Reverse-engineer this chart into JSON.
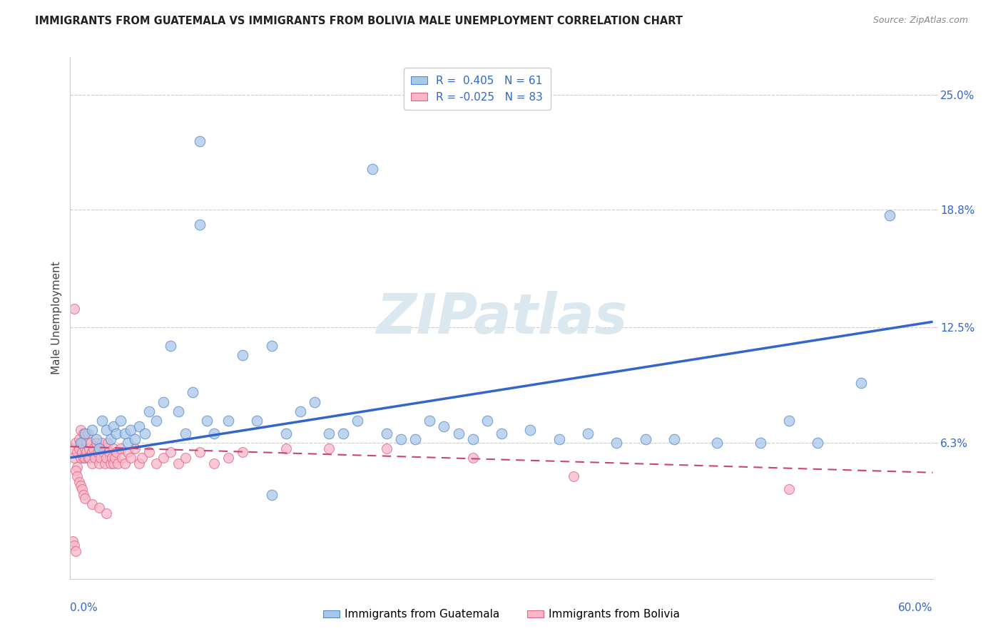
{
  "title": "IMMIGRANTS FROM GUATEMALA VS IMMIGRANTS FROM BOLIVIA MALE UNEMPLOYMENT CORRELATION CHART",
  "source": "Source: ZipAtlas.com",
  "ylabel": "Male Unemployment",
  "ytick_labels": [
    "25.0%",
    "18.8%",
    "12.5%",
    "6.3%"
  ],
  "ytick_values": [
    0.25,
    0.188,
    0.125,
    0.063
  ],
  "xlim": [
    0.0,
    0.6
  ],
  "ylim": [
    -0.01,
    0.27
  ],
  "legend_r_blue": "R =  0.405",
  "legend_n_blue": "N = 61",
  "legend_r_pink": "R = -0.025",
  "legend_n_pink": "N = 83",
  "blue_color": "#a8c8e8",
  "blue_edge_color": "#5588cc",
  "blue_line_color": "#3366cc",
  "pink_color": "#f8b8c8",
  "pink_edge_color": "#dd6688",
  "pink_line_color": "#cc4477",
  "watermark_text": "ZIPatlas",
  "watermark_color": "#dce8f0",
  "background_color": "#ffffff",
  "grid_color": "#cccccc",
  "title_color": "#222222",
  "axis_label_color": "#444444",
  "tick_label_color": "#3366cc",
  "blue_line_x": [
    0.0,
    0.6
  ],
  "blue_line_y": [
    0.055,
    0.128
  ],
  "pink_line_x": [
    0.0,
    0.6
  ],
  "pink_line_y": [
    0.061,
    0.047
  ],
  "blue_scatter_x": [
    0.007,
    0.01,
    0.015,
    0.018,
    0.02,
    0.022,
    0.025,
    0.028,
    0.03,
    0.032,
    0.035,
    0.038,
    0.04,
    0.042,
    0.045,
    0.048,
    0.052,
    0.055,
    0.06,
    0.065,
    0.07,
    0.075,
    0.08,
    0.085,
    0.09,
    0.095,
    0.1,
    0.11,
    0.12,
    0.13,
    0.14,
    0.15,
    0.16,
    0.17,
    0.18,
    0.19,
    0.2,
    0.21,
    0.22,
    0.23,
    0.24,
    0.25,
    0.26,
    0.27,
    0.28,
    0.29,
    0.3,
    0.32,
    0.34,
    0.36,
    0.38,
    0.4,
    0.42,
    0.45,
    0.48,
    0.5,
    0.52,
    0.55,
    0.09,
    0.57,
    0.14
  ],
  "blue_scatter_y": [
    0.063,
    0.068,
    0.07,
    0.065,
    0.06,
    0.075,
    0.07,
    0.065,
    0.072,
    0.068,
    0.075,
    0.068,
    0.063,
    0.07,
    0.065,
    0.072,
    0.068,
    0.08,
    0.075,
    0.085,
    0.115,
    0.08,
    0.068,
    0.09,
    0.18,
    0.075,
    0.068,
    0.075,
    0.11,
    0.075,
    0.115,
    0.068,
    0.08,
    0.085,
    0.068,
    0.068,
    0.075,
    0.21,
    0.068,
    0.065,
    0.065,
    0.075,
    0.072,
    0.068,
    0.065,
    0.075,
    0.068,
    0.07,
    0.065,
    0.068,
    0.063,
    0.065,
    0.065,
    0.063,
    0.063,
    0.075,
    0.063,
    0.095,
    0.225,
    0.185,
    0.035
  ],
  "pink_scatter_x": [
    0.002,
    0.003,
    0.004,
    0.005,
    0.005,
    0.006,
    0.006,
    0.007,
    0.007,
    0.008,
    0.008,
    0.009,
    0.009,
    0.01,
    0.01,
    0.011,
    0.011,
    0.012,
    0.012,
    0.013,
    0.013,
    0.014,
    0.015,
    0.015,
    0.016,
    0.017,
    0.018,
    0.019,
    0.02,
    0.02,
    0.021,
    0.022,
    0.023,
    0.024,
    0.025,
    0.025,
    0.026,
    0.027,
    0.028,
    0.029,
    0.03,
    0.03,
    0.031,
    0.032,
    0.033,
    0.035,
    0.036,
    0.038,
    0.04,
    0.042,
    0.045,
    0.048,
    0.05,
    0.055,
    0.06,
    0.065,
    0.07,
    0.075,
    0.08,
    0.09,
    0.1,
    0.11,
    0.12,
    0.15,
    0.18,
    0.22,
    0.28,
    0.35,
    0.5,
    0.003,
    0.004,
    0.005,
    0.006,
    0.007,
    0.008,
    0.009,
    0.01,
    0.015,
    0.02,
    0.025,
    0.002,
    0.003,
    0.004
  ],
  "pink_scatter_y": [
    0.06,
    0.055,
    0.063,
    0.058,
    0.05,
    0.065,
    0.06,
    0.055,
    0.07,
    0.063,
    0.058,
    0.055,
    0.068,
    0.06,
    0.055,
    0.063,
    0.058,
    0.055,
    0.068,
    0.06,
    0.055,
    0.063,
    0.058,
    0.052,
    0.06,
    0.055,
    0.063,
    0.058,
    0.06,
    0.052,
    0.055,
    0.063,
    0.058,
    0.052,
    0.06,
    0.055,
    0.063,
    0.058,
    0.052,
    0.055,
    0.06,
    0.052,
    0.055,
    0.058,
    0.052,
    0.06,
    0.055,
    0.052,
    0.058,
    0.055,
    0.06,
    0.052,
    0.055,
    0.058,
    0.052,
    0.055,
    0.058,
    0.052,
    0.055,
    0.058,
    0.052,
    0.055,
    0.058,
    0.06,
    0.06,
    0.06,
    0.055,
    0.045,
    0.038,
    0.135,
    0.048,
    0.045,
    0.042,
    0.04,
    0.038,
    0.035,
    0.033,
    0.03,
    0.028,
    0.025,
    0.01,
    0.008,
    0.005
  ]
}
